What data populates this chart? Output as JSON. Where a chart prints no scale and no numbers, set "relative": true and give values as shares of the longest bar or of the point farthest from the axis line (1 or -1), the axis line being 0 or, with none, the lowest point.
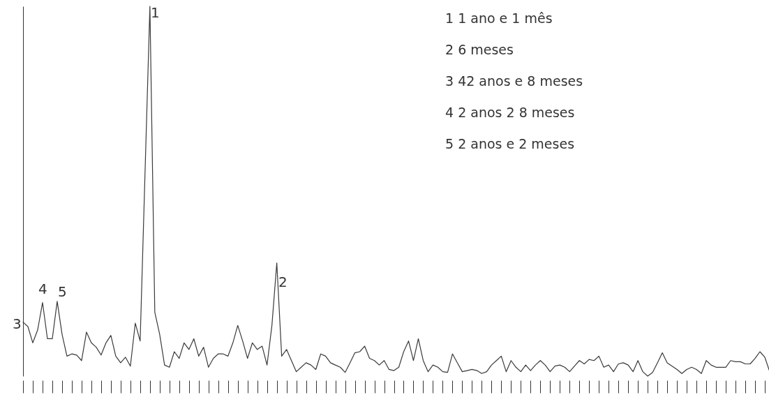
{
  "chart_data": {
    "type": "line",
    "relative": true,
    "color": "#3a3a3a",
    "categories": [
      null,
      null,
      null,
      null,
      null,
      null,
      null,
      null,
      null,
      null,
      null,
      null,
      null,
      null,
      null,
      null,
      null,
      null,
      null,
      null,
      null,
      null,
      null,
      null,
      null,
      null,
      null,
      null,
      null,
      null,
      null,
      null,
      null,
      null,
      null,
      null,
      null,
      null,
      null,
      null,
      null,
      null,
      null,
      null,
      null,
      null,
      null,
      null,
      null,
      null,
      null,
      null,
      null,
      null,
      null,
      null,
      null,
      null,
      null,
      null,
      null,
      null,
      null,
      null,
      null,
      null,
      null,
      null,
      null,
      null,
      null,
      null,
      null,
      null,
      null,
      null,
      null,
      null,
      null,
      null,
      null,
      null,
      null,
      null,
      null,
      null,
      null,
      null,
      null,
      null,
      null,
      null,
      null,
      null,
      null,
      null,
      null,
      null,
      null,
      null,
      null,
      null,
      null,
      null,
      null,
      null,
      null,
      null,
      null,
      null,
      null,
      null,
      null,
      null,
      null,
      null,
      null,
      null,
      null,
      null,
      null,
      null,
      null,
      null,
      null,
      null,
      null,
      null,
      null,
      null,
      null,
      null,
      null,
      null,
      null,
      null,
      null,
      null,
      null,
      null,
      null,
      null,
      null,
      null,
      null,
      null,
      null,
      null,
      null,
      null,
      null,
      null,
      null,
      null
    ],
    "values": [
      0.146,
      0.134,
      0.09,
      0.125,
      0.199,
      0.101,
      0.101,
      0.202,
      0.113,
      0.054,
      0.06,
      0.057,
      0.042,
      0.119,
      0.09,
      0.078,
      0.057,
      0.09,
      0.11,
      0.054,
      0.036,
      0.051,
      0.027,
      0.143,
      0.095,
      0.55,
      1,
      0.173,
      0.113,
      0.03,
      0.024,
      0.066,
      0.048,
      0.09,
      0.072,
      0.101,
      0.054,
      0.078,
      0.024,
      0.048,
      0.06,
      0.06,
      0.054,
      0.09,
      0.137,
      0.095,
      0.048,
      0.09,
      0.072,
      0.081,
      0.03,
      0.137,
      0.306,
      0.054,
      0.072,
      0.042,
      0.012,
      0.024,
      0.036,
      0.03,
      0.018,
      0.06,
      0.054,
      0.036,
      0.03,
      0.024,
      0.01,
      0.036,
      0.063,
      0.066,
      0.081,
      0.048,
      0.042,
      0.03,
      0.042,
      0.018,
      0.015,
      0.024,
      0.066,
      0.095,
      0.042,
      0.101,
      0.042,
      0.012,
      0.03,
      0.024,
      0.012,
      0.01,
      0.06,
      0.036,
      0.012,
      0.015,
      0.018,
      0.015,
      0.007,
      0.012,
      0.03,
      0.042,
      0.054,
      0.012,
      0.042,
      0.024,
      0.012,
      0.03,
      0.015,
      0.03,
      0.042,
      0.03,
      0.012,
      0.027,
      0.03,
      0.024,
      0.012,
      0.027,
      0.042,
      0.033,
      0.045,
      0.042,
      0.054,
      0.024,
      0.03,
      0.012,
      0.033,
      0.036,
      0.03,
      0.012,
      0.042,
      0.012,
      0,
      0.01,
      0.036,
      0.063,
      0.036,
      0.027,
      0.018,
      0.007,
      0.018,
      0.024,
      0.018,
      0.007,
      0.042,
      0.03,
      0.024,
      0.024,
      0.024,
      0.042,
      0.039,
      0.039,
      0.033,
      0.033,
      0.048,
      0.066,
      0.051,
      0.012
    ],
    "annotations": [
      "1",
      "2",
      "3",
      "4",
      "5",
      "1  1 ano e 1 mês",
      "2  6 meses",
      "3  42 anos e 8 meses",
      "4 2 anos 2 8 meses",
      "5 2 anos e 2 meses"
    ]
  }
}
